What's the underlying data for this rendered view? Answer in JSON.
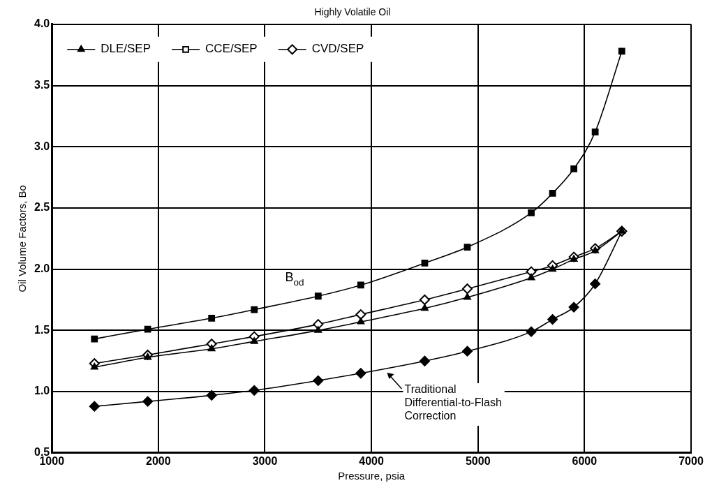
{
  "chart_data": {
    "type": "line",
    "title": "Highly Volatile Oil",
    "xlabel": "Pressure, psia",
    "ylabel": "Oil Volume Factors, Bo",
    "x": [
      1400,
      1900,
      2500,
      2900,
      3500,
      3900,
      4500,
      4900,
      5500,
      5700,
      5900,
      6100,
      6350
    ],
    "series": [
      {
        "name": "DLE/SEP",
        "color": "#000000",
        "marker": "triangle",
        "values": [
          1.2,
          1.28,
          1.35,
          1.41,
          1.5,
          1.57,
          1.68,
          1.77,
          1.93,
          2.0,
          2.08,
          2.15,
          2.31
        ]
      },
      {
        "name": "CCE/SEP",
        "color": "#000000",
        "marker": "square",
        "values": [
          null,
          null,
          null,
          null,
          null,
          null,
          null,
          null,
          null,
          null,
          null,
          null,
          null
        ]
      },
      {
        "name": "CVD/SEP",
        "color": "#000000",
        "marker": "diamond",
        "values": [
          1.23,
          1.3,
          1.39,
          1.45,
          1.55,
          1.63,
          1.75,
          1.84,
          1.98,
          2.03,
          2.1,
          2.17,
          2.31
        ]
      },
      {
        "color": "#000000",
        "marker": "square",
        "values": [
          1.43,
          1.51,
          1.6,
          1.67,
          1.78,
          1.87,
          2.05,
          2.18,
          2.46,
          2.62,
          2.82,
          3.12,
          3.78
        ]
      },
      {
        "color": "#000000",
        "marker": "diamond",
        "values": [
          0.88,
          0.92,
          0.97,
          1.01,
          1.09,
          1.15,
          1.25,
          1.33,
          1.49,
          1.59,
          1.69,
          1.88,
          2.31
        ]
      }
    ],
    "annotations": [
      "B$_{od}$",
      {
        "text": "Traditional\nDifferential-to-Flash\nCorrection",
        "x": 4140,
        "y": 1.16
      }
    ],
    "xlim": [
      1000,
      7000
    ],
    "xticks": [
      1000,
      2000,
      3000,
      4000,
      5000,
      6000,
      7000
    ],
    "ylim": [
      0.5,
      4.0
    ],
    "yticks": [
      {
        "value": 0.5,
        "label": "0.5"
      },
      {
        "value": 1.0,
        "label": "1.0"
      },
      {
        "value": 1.5,
        "label": "1.5"
      },
      {
        "value": 2.0,
        "label": "2.0"
      },
      {
        "value": 2.5,
        "label": "2.5"
      },
      {
        "value": 3.0,
        "label": "3.0"
      },
      {
        "value": 3.5,
        "label": "3.5"
      },
      {
        "value": 4.0,
        "label": "4.0"
      }
    ],
    "grid": true,
    "legend": "top left",
    "line_style": "solid"
  }
}
